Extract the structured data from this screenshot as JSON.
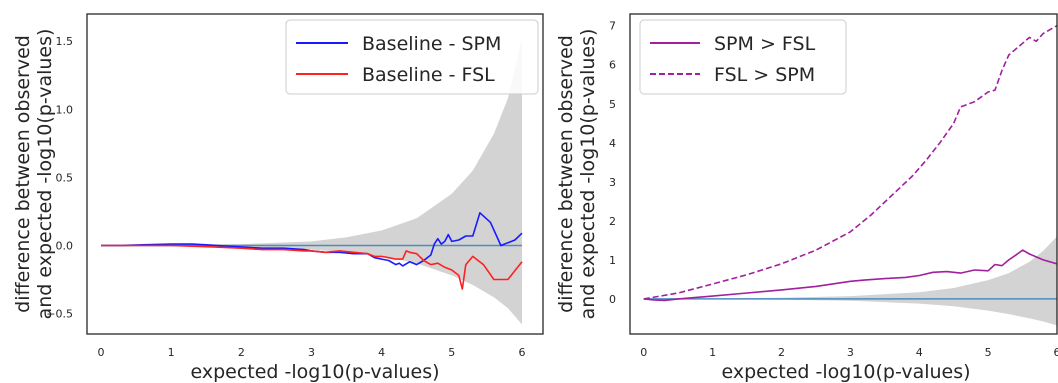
{
  "chart_data": [
    {
      "type": "line",
      "title": "",
      "xlabel": "expected -log10(p-values)",
      "ylabel_lines": [
        "difference between observed",
        "and expected -log10(p-values)"
      ],
      "xlim": [
        -0.2,
        6.3
      ],
      "ylim": [
        -0.65,
        1.7
      ],
      "xticks": [
        0,
        1,
        2,
        3,
        4,
        5,
        6
      ],
      "yticks": [
        -0.5,
        0.0,
        0.5,
        1.0,
        1.5
      ],
      "ytick_labels": [
        "−0.5",
        "0.0",
        "0.5",
        "1.0",
        "1.5"
      ],
      "grid": false,
      "legend_position": "top-right",
      "band": {
        "color": "#d3d3d3",
        "x": [
          0,
          1,
          2,
          3,
          3.5,
          4,
          4.5,
          5,
          5.3,
          5.6,
          5.8,
          6.0
        ],
        "upper": [
          0,
          0.005,
          0.01,
          0.03,
          0.06,
          0.11,
          0.2,
          0.38,
          0.55,
          0.82,
          1.08,
          1.52
        ],
        "lower": [
          0,
          -0.005,
          -0.01,
          -0.03,
          -0.05,
          -0.08,
          -0.13,
          -0.22,
          -0.29,
          -0.38,
          -0.46,
          -0.58
        ]
      },
      "reference_line": {
        "color": "#4c8dbf",
        "x": [
          0,
          6
        ],
        "y": [
          0,
          0
        ]
      },
      "series": [
        {
          "name": "Baseline - SPM",
          "color": "#1a1aff",
          "dash": false,
          "x": [
            0,
            0.3,
            0.6,
            1.0,
            1.3,
            1.5,
            1.8,
            2.0,
            2.3,
            2.6,
            2.9,
            3.0,
            3.2,
            3.4,
            3.6,
            3.8,
            3.9,
            4.0,
            4.1,
            4.2,
            4.25,
            4.3,
            4.4,
            4.5,
            4.6,
            4.7,
            4.75,
            4.8,
            4.85,
            4.9,
            4.95,
            5.0,
            5.1,
            5.2,
            5.3,
            5.4,
            5.55,
            5.7,
            5.9,
            6.0
          ],
          "y": [
            0,
            0.0,
            0.005,
            0.01,
            0.01,
            0.005,
            -0.005,
            -0.01,
            -0.02,
            -0.02,
            -0.03,
            -0.04,
            -0.05,
            -0.05,
            -0.06,
            -0.06,
            -0.09,
            -0.1,
            -0.11,
            -0.14,
            -0.13,
            -0.15,
            -0.12,
            -0.14,
            -0.11,
            -0.07,
            0.01,
            0.05,
            0.01,
            0.03,
            0.08,
            0.03,
            0.04,
            0.07,
            0.07,
            0.24,
            0.17,
            0.0,
            0.04,
            0.09
          ]
        },
        {
          "name": "Baseline - FSL",
          "color": "#ff2020",
          "dash": false,
          "x": [
            0,
            0.3,
            0.6,
            1.0,
            1.3,
            1.6,
            2.0,
            2.3,
            2.6,
            2.9,
            3.0,
            3.2,
            3.4,
            3.6,
            3.8,
            3.9,
            4.0,
            4.1,
            4.2,
            4.3,
            4.35,
            4.4,
            4.5,
            4.6,
            4.7,
            4.8,
            4.9,
            5.0,
            5.1,
            5.15,
            5.2,
            5.3,
            5.45,
            5.6,
            5.8,
            6.0
          ],
          "y": [
            0,
            0.0,
            0.0,
            0.0,
            -0.005,
            -0.01,
            -0.02,
            -0.03,
            -0.03,
            -0.04,
            -0.04,
            -0.05,
            -0.04,
            -0.05,
            -0.06,
            -0.08,
            -0.08,
            -0.09,
            -0.1,
            -0.1,
            -0.04,
            -0.05,
            -0.06,
            -0.11,
            -0.14,
            -0.13,
            -0.16,
            -0.18,
            -0.22,
            -0.32,
            -0.14,
            -0.08,
            -0.14,
            -0.25,
            -0.25,
            -0.12
          ]
        }
      ]
    },
    {
      "type": "line",
      "title": "",
      "xlabel": "expected -log10(p-values)",
      "ylabel_lines": [
        "difference between observed",
        "and expected -log10(p-values)"
      ],
      "xlim": [
        -0.2,
        6.0
      ],
      "ylim": [
        -0.9,
        7.3
      ],
      "xticks": [
        0,
        1,
        2,
        3,
        4,
        5,
        6
      ],
      "yticks": [
        0,
        1,
        2,
        3,
        4,
        5,
        6,
        7
      ],
      "ytick_labels": [
        "0",
        "1",
        "2",
        "3",
        "4",
        "5",
        "6",
        "7"
      ],
      "grid": false,
      "legend_position": "top-left",
      "band": {
        "color": "#d3d3d3",
        "x": [
          0,
          1,
          2,
          3,
          4,
          4.5,
          5,
          5.3,
          5.6,
          5.8,
          6.0
        ],
        "upper": [
          0,
          0.01,
          0.03,
          0.07,
          0.17,
          0.28,
          0.48,
          0.66,
          0.95,
          1.23,
          1.6
        ],
        "lower": [
          0,
          -0.01,
          -0.02,
          -0.05,
          -0.12,
          -0.19,
          -0.3,
          -0.39,
          -0.5,
          -0.58,
          -0.68
        ]
      },
      "reference_line": {
        "color": "#4c8dbf",
        "x": [
          0,
          6
        ],
        "y": [
          0,
          0
        ]
      },
      "series": [
        {
          "name": "SPM > FSL",
          "color": "#a020a0",
          "dash": false,
          "x": [
            0,
            0.15,
            0.3,
            0.5,
            1.0,
            1.5,
            2.0,
            2.5,
            3.0,
            3.2,
            3.5,
            3.8,
            4.0,
            4.2,
            4.4,
            4.6,
            4.8,
            5.0,
            5.1,
            5.2,
            5.3,
            5.4,
            5.5,
            5.6,
            5.8,
            6.0
          ],
          "y": [
            0,
            -0.03,
            -0.04,
            0.0,
            0.07,
            0.15,
            0.23,
            0.32,
            0.45,
            0.48,
            0.52,
            0.55,
            0.6,
            0.68,
            0.7,
            0.66,
            0.74,
            0.72,
            0.88,
            0.85,
            1.0,
            1.12,
            1.25,
            1.15,
            1.0,
            0.9
          ]
        },
        {
          "name": "FSL > SPM",
          "color": "#a020a0",
          "dash": true,
          "x": [
            0,
            0.5,
            1.0,
            1.5,
            2.0,
            2.5,
            3.0,
            3.3,
            3.6,
            3.9,
            4.1,
            4.3,
            4.5,
            4.6,
            4.8,
            5.0,
            5.1,
            5.2,
            5.3,
            5.4,
            5.5,
            5.6,
            5.7,
            5.8,
            5.9,
            6.0
          ],
          "y": [
            0,
            0.15,
            0.38,
            0.62,
            0.9,
            1.25,
            1.72,
            2.15,
            2.65,
            3.15,
            3.55,
            4.0,
            4.5,
            4.92,
            5.05,
            5.3,
            5.35,
            5.85,
            6.25,
            6.4,
            6.55,
            6.7,
            6.6,
            6.8,
            6.9,
            7.0
          ]
        }
      ]
    }
  ]
}
